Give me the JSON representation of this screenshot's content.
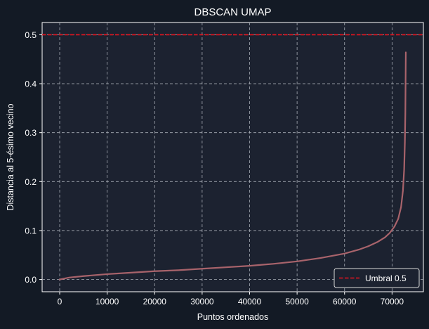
{
  "chart_data": {
    "type": "line",
    "title": "DBSCAN UMAP",
    "xlabel": "Puntos ordenados",
    "ylabel": "Distancia al 5-ésimo vecino",
    "xlim": [
      -3700,
      76600
    ],
    "ylim": [
      -0.025,
      0.525
    ],
    "xticks": [
      0,
      10000,
      20000,
      30000,
      40000,
      50000,
      60000,
      70000
    ],
    "xtick_labels": [
      "0",
      "10000",
      "20000",
      "30000",
      "40000",
      "50000",
      "60000",
      "70000"
    ],
    "yticks": [
      0.0,
      0.1,
      0.2,
      0.3,
      0.4,
      0.5
    ],
    "ytick_labels": [
      "0.0",
      "0.1",
      "0.2",
      "0.3",
      "0.4",
      "0.5"
    ],
    "grid": true,
    "legend_position": "bottom-right",
    "series": [
      {
        "color": "#a8636b",
        "style": "solid",
        "x": [
          0,
          2000,
          5000,
          10000,
          15000,
          20000,
          25000,
          30000,
          35000,
          40000,
          45000,
          50000,
          55000,
          60000,
          63000,
          65000,
          67000,
          68500,
          69500,
          70500,
          71300,
          71900,
          72300,
          72550,
          72700,
          72800,
          72850,
          72900
        ],
        "y": [
          0.0,
          0.004,
          0.007,
          0.011,
          0.014,
          0.017,
          0.019,
          0.022,
          0.025,
          0.028,
          0.032,
          0.037,
          0.044,
          0.053,
          0.061,
          0.068,
          0.077,
          0.086,
          0.095,
          0.108,
          0.124,
          0.148,
          0.182,
          0.225,
          0.28,
          0.34,
          0.4,
          0.464
        ]
      }
    ],
    "hlines": [
      {
        "name": "Umbral 0.5",
        "y": 0.5,
        "color": "#e8141e",
        "style": "dashed"
      }
    ]
  }
}
